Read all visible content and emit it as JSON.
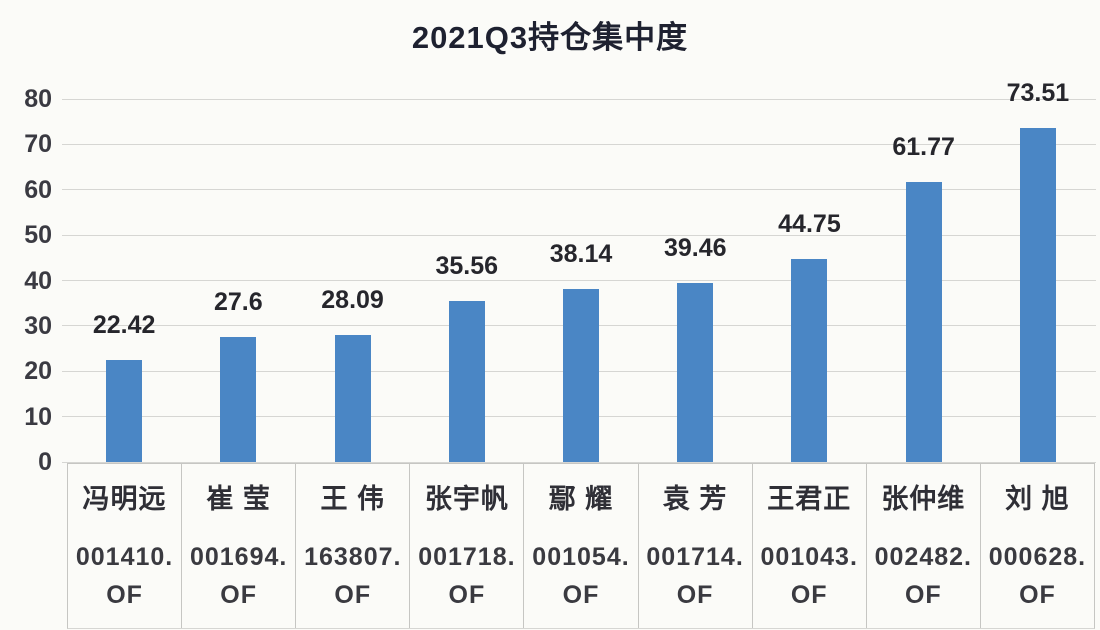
{
  "title": "2021Q3持仓集中度",
  "chart_data": {
    "type": "bar",
    "title": "2021Q3持仓集中度",
    "categories": [
      "冯明远",
      "崔 莹",
      "王 伟",
      "张宇帆",
      "鄢 耀",
      "袁 芳",
      "王君正",
      "张仲维",
      "刘 旭"
    ],
    "codes": [
      "001410.",
      "001694.",
      "163807.",
      "001718.",
      "001054.",
      "001714.",
      "001043.",
      "002482.",
      "000628."
    ],
    "code_suffix": "OF",
    "values": [
      22.42,
      27.6,
      28.09,
      35.56,
      38.14,
      39.46,
      44.75,
      61.77,
      73.51
    ],
    "value_labels": [
      "22.42",
      "27.6",
      "28.09",
      "35.56",
      "38.14",
      "39.46",
      "44.75",
      "61.77",
      "73.51"
    ],
    "xlabel": "",
    "ylabel": "",
    "ylim": [
      0,
      80
    ],
    "yticks": [
      0,
      10,
      20,
      30,
      40,
      50,
      60,
      70,
      80
    ],
    "grid": true,
    "legend_position": "none",
    "bar_color": "#4a86c5",
    "gridline_color": "#d6d6d3",
    "background_color": "#fbfbf8"
  }
}
